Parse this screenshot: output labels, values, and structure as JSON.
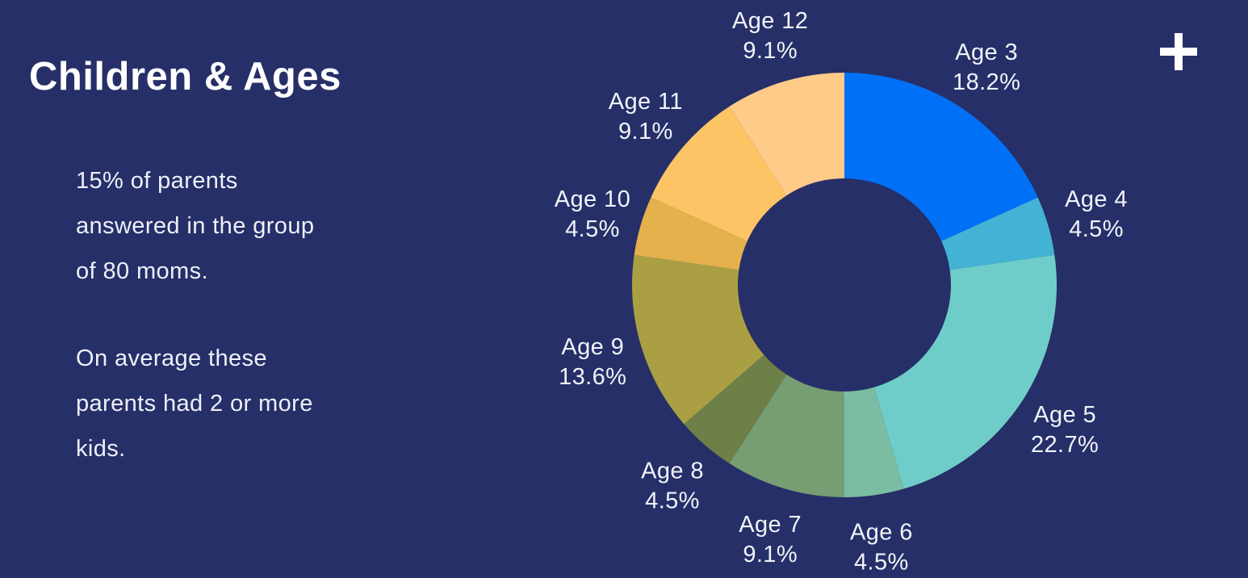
{
  "page": {
    "background_color": "#262f68",
    "title": "Children & Ages",
    "description_paragraph_1": "15% of parents\nanswered in the group\nof 80 moms.",
    "description_paragraph_2": "On average these\nparents had 2 or more\nkids.",
    "text_color": "#eef0f6",
    "add_button_icon": "plus-icon"
  },
  "chart_data": {
    "type": "pie",
    "subtype": "donut",
    "title": "Children & Ages",
    "categories": [
      "Age 3",
      "Age 4",
      "Age 5",
      "Age 6",
      "Age 7",
      "Age 8",
      "Age 9",
      "Age 10",
      "Age 11",
      "Age 12"
    ],
    "values": [
      18.2,
      4.5,
      22.7,
      4.5,
      9.1,
      4.5,
      13.6,
      4.5,
      9.1,
      9.1
    ],
    "value_labels": [
      "18.2%",
      "4.5%",
      "22.7%",
      "4.5%",
      "9.1%",
      "4.5%",
      "13.6%",
      "4.5%",
      "9.1%",
      "9.1%"
    ],
    "colors": [
      "#0070f7",
      "#42b3d5",
      "#6fcdc9",
      "#7abda2",
      "#779d73",
      "#6d8048",
      "#aaa043",
      "#e4b14c",
      "#fdc465",
      "#fecb88"
    ],
    "start_angle_deg": 0,
    "direction": "clockwise",
    "inner_radius_ratio": 0.5,
    "labels_position": "outside",
    "label_color": "#f1f3f8",
    "legend_position": "none",
    "grid": "off"
  }
}
